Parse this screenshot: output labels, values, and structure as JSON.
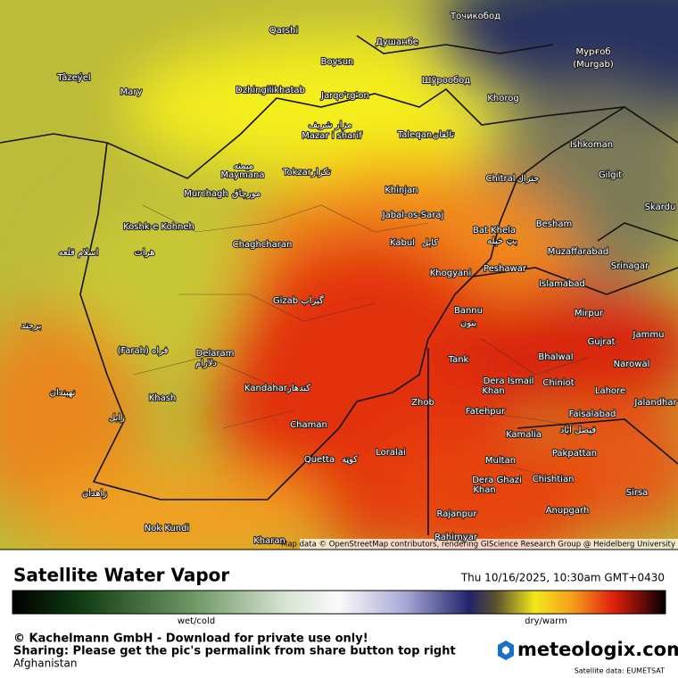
{
  "map": {
    "labels": [
      "Qarshi",
      "Душанбе",
      "Точикобод",
      "Boysun",
      "Мурғоб",
      "(Murgab)",
      "Tâzeýel",
      "Mary",
      "Dzhingilikhatab",
      "Jarqo'rg'on",
      "Шӯрообод",
      "Khorog",
      "مزار شریف",
      "Mazar i sharif",
      "Taleqan",
      "تالقان",
      "Ishkoman",
      "میمنه",
      "Maymana",
      "Tokzar",
      "تکزار",
      "Gilgit",
      "Chitral",
      "جترال",
      "Murchagh",
      "مورچاق",
      "Khinjan",
      "Jabal-os-Saraj",
      "Besham",
      "Skardu",
      "Koshk-e Kohneh",
      "Bat Khela",
      "بټ خېله",
      "Kabul",
      "کابل",
      "Chaghcharan",
      "Muzaffarabad",
      "هرات",
      "اسلام قلعه",
      "Srinagar",
      "Peshawar",
      "Khogyani",
      "Islamabad",
      "Gizab",
      "گیزاب",
      "Mirpur",
      "Bannu",
      "بنون",
      "برجند",
      "Jammu",
      "Gujrat",
      "(Farah) فراه",
      "Delaram",
      "دلارام",
      "Bhalwal",
      "Tank",
      "Narowal",
      "Dera Ismail",
      "Khan",
      "Chiniot",
      "Kandahar",
      "کندهار",
      "Lahore",
      "نهبندان",
      "Khash",
      "Jalandhar",
      "Zhob",
      "Fatehpur",
      "Faisalabad",
      "فیصل آباد",
      "زابل",
      "Chaman",
      "Kamalia",
      "Loralai",
      "Quetta",
      "کوټه",
      "Pakpattan",
      "Multan",
      "Dera Ghazi",
      "Khan",
      "Chishtian",
      "زاهدان",
      "Sirsa",
      "Rajanpur",
      "Anupgarh",
      "Nok Kundi",
      "Kharan",
      "Rahimyar"
    ],
    "attribution": "Map data © OpenStreetMap contributors, rendering GIScience Research Group @ Heidelberg University"
  },
  "footer": {
    "title": "Satellite Water Vapor",
    "datetime": "Thu 10/16/2025, 10:30am GMT+0430",
    "scale_low": "wet/cold",
    "scale_high": "dry/warm",
    "copyright": "© Kachelmann GmbH - Download for private use only!",
    "sharing": "Sharing: Please get the pic's permalink from share button top right",
    "region": "Afghanistan",
    "brand": "meteologix.com",
    "source": "Satellite data: EUMETSAT"
  }
}
